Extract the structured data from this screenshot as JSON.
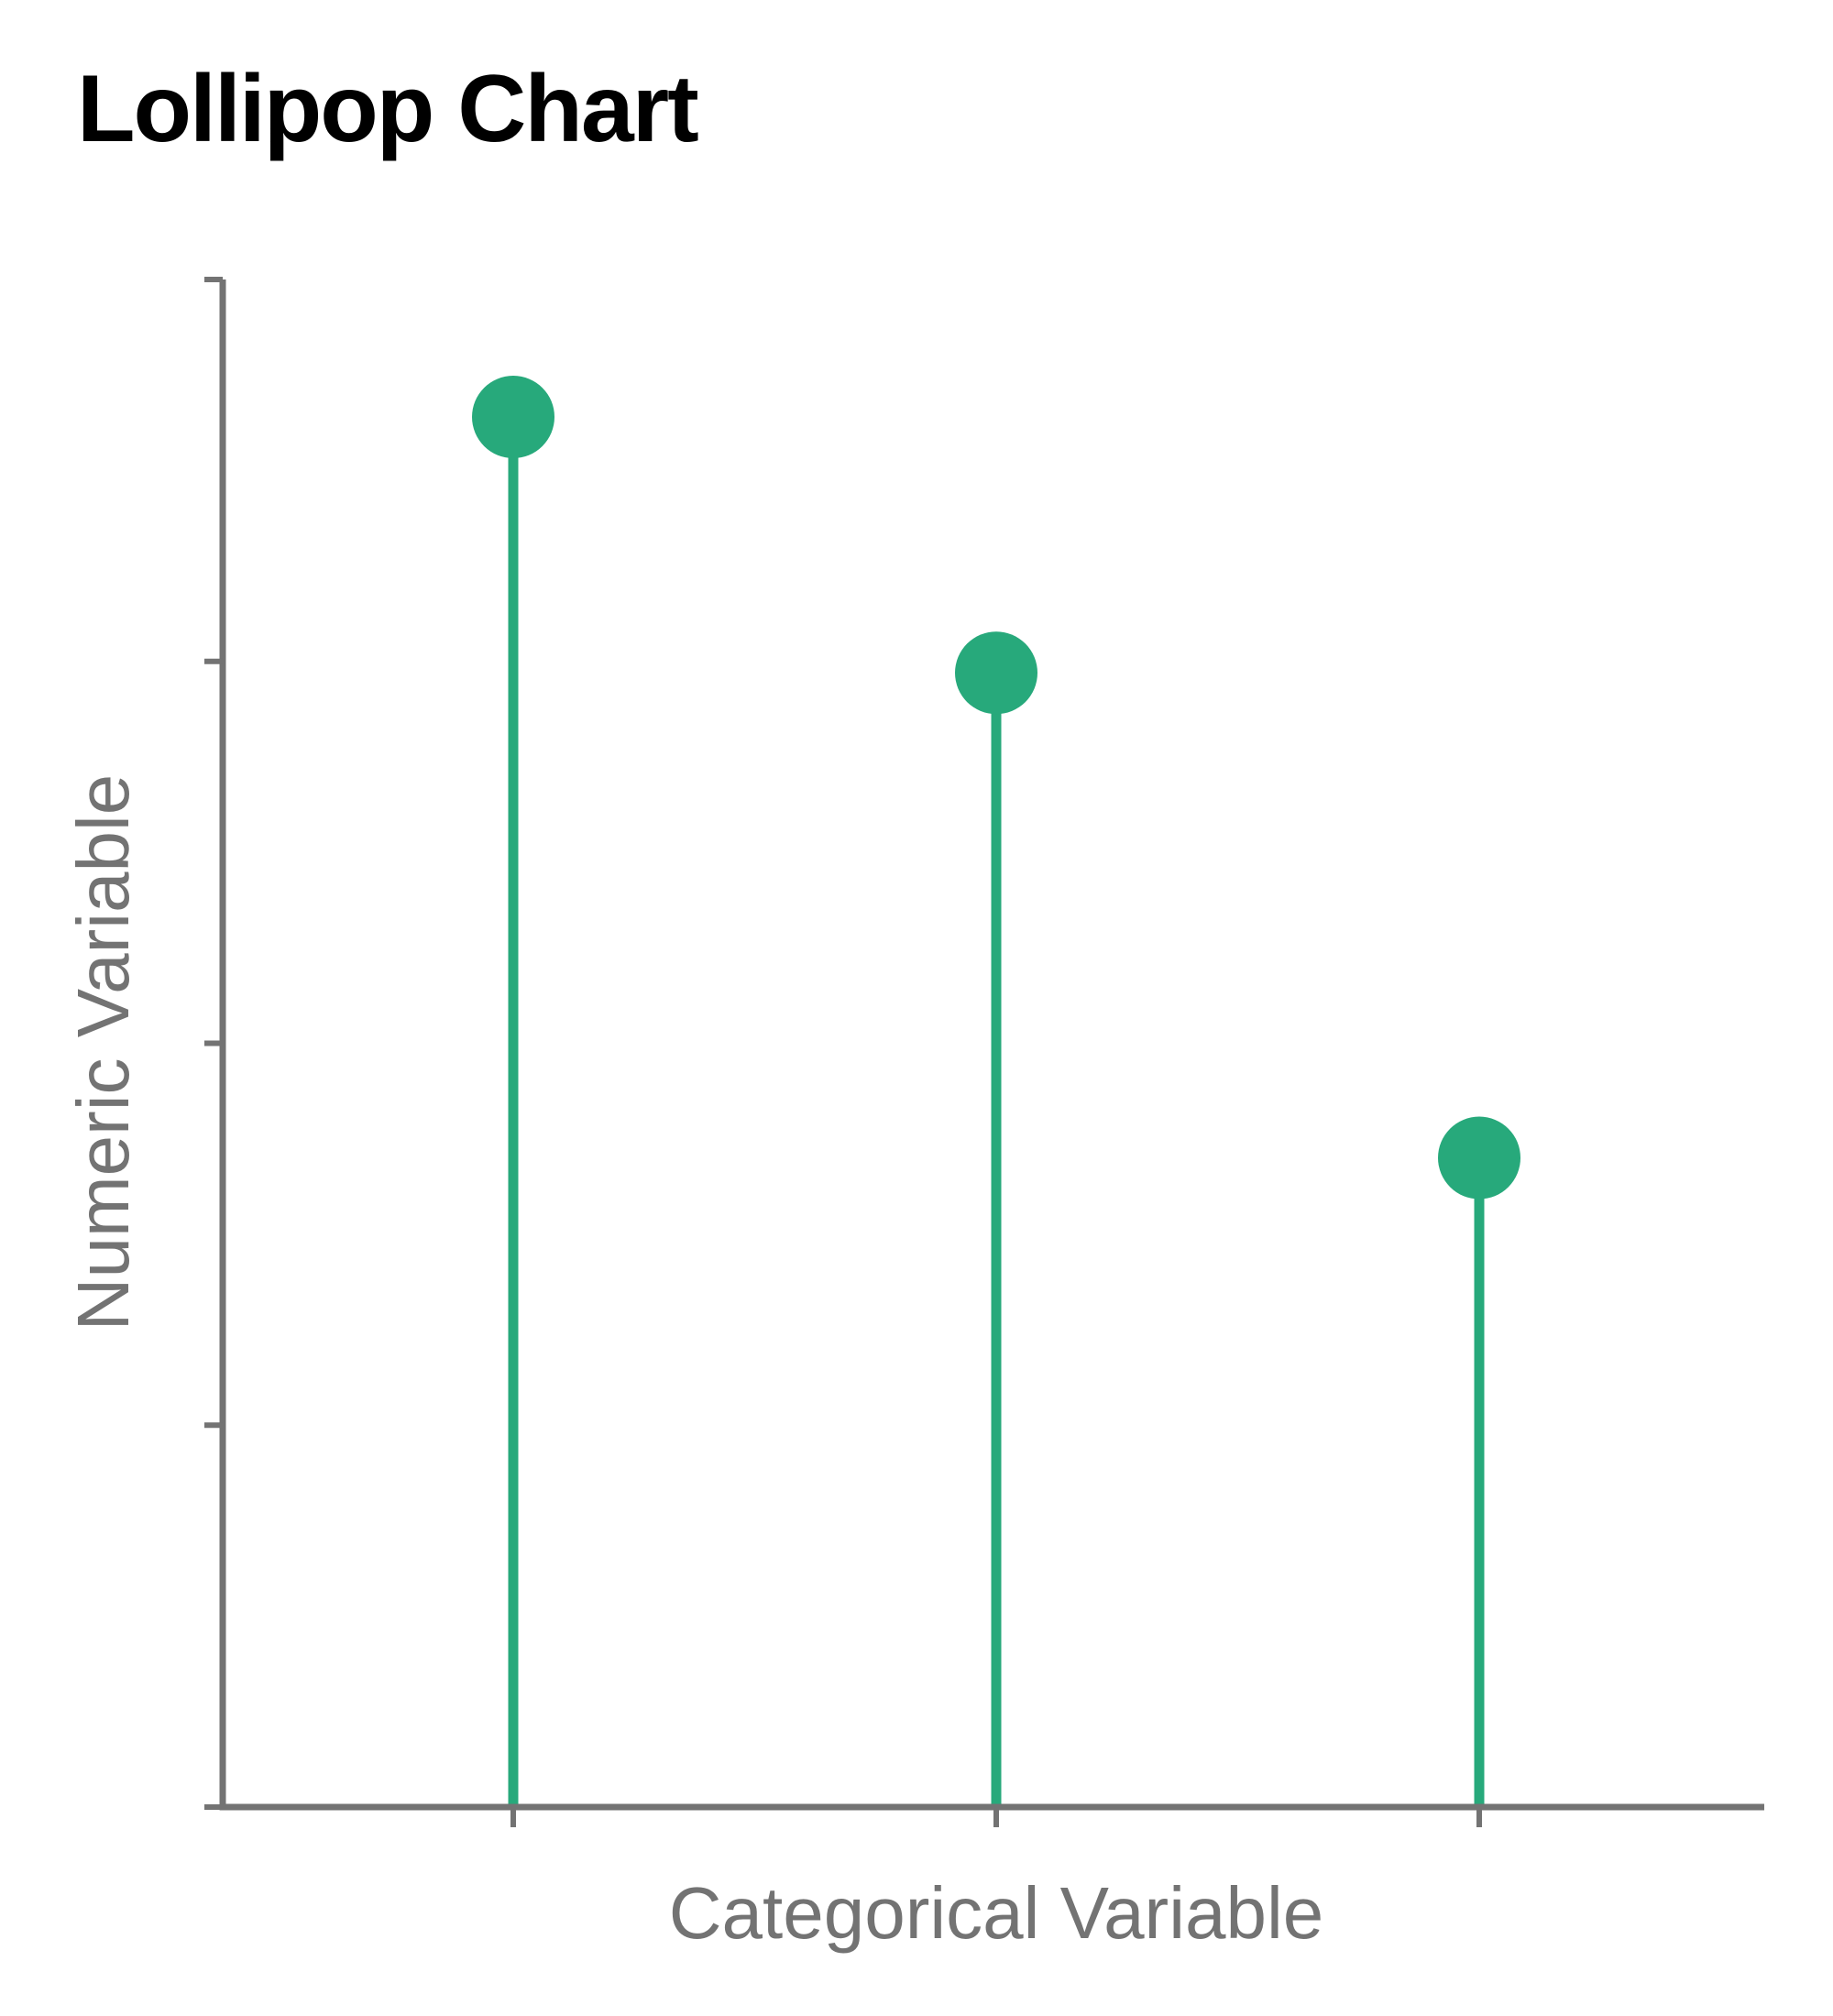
{
  "chart_data": {
    "type": "lollipop",
    "title": "Lollipop Chart",
    "xlabel": "Categorical Variable",
    "ylabel": "Numeric Variable",
    "categories": [
      "",
      "",
      ""
    ],
    "values": [
      3.64,
      2.97,
      1.7
    ],
    "ylim": [
      0,
      4
    ],
    "yticks": [
      0,
      1,
      2,
      3,
      4
    ],
    "grid": false,
    "legend": "none",
    "colors": {
      "mark": "#27A97B",
      "axis": "#737373",
      "title": "#000000"
    }
  }
}
